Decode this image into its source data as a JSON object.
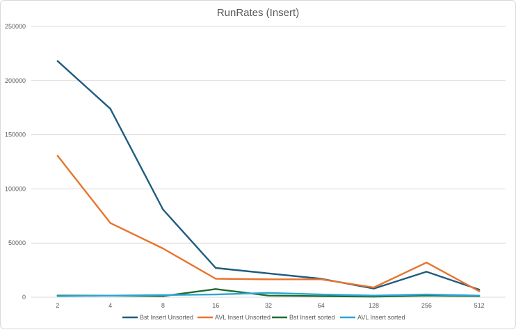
{
  "chart_data": {
    "type": "line",
    "title": "RunRates (Insert)",
    "xlabel": "",
    "ylabel": "",
    "categories": [
      "2",
      "4",
      "8",
      "16",
      "32",
      "64",
      "128",
      "256",
      "512"
    ],
    "ylim": [
      0,
      250000
    ],
    "yticks": [
      0,
      50000,
      100000,
      150000,
      200000,
      250000
    ],
    "yticklabels": [
      "0",
      "50000",
      "100000",
      "150000",
      "200000",
      "250000"
    ],
    "grid": true,
    "legend_position": "bottom",
    "series": [
      {
        "name": "Bst Insert Unsorted",
        "color": "#1f5c80",
        "values": [
          218000,
          174000,
          81000,
          27000,
          22000,
          17000,
          8000,
          23500,
          7000
        ]
      },
      {
        "name": "AVL Insert Unsorted",
        "color": "#e8742e",
        "values": [
          130500,
          68500,
          45000,
          17000,
          16500,
          16500,
          9000,
          32000,
          5500
        ]
      },
      {
        "name": "Bst Insert sorted",
        "color": "#1e6e2a",
        "values": [
          1500,
          1500,
          1000,
          7500,
          1500,
          1000,
          500,
          1500,
          1000
        ]
      },
      {
        "name": "AVL Insert sorted",
        "color": "#2aa4d6",
        "values": [
          1000,
          1500,
          2000,
          2500,
          4000,
          2500,
          1500,
          2500,
          1500
        ]
      }
    ]
  }
}
